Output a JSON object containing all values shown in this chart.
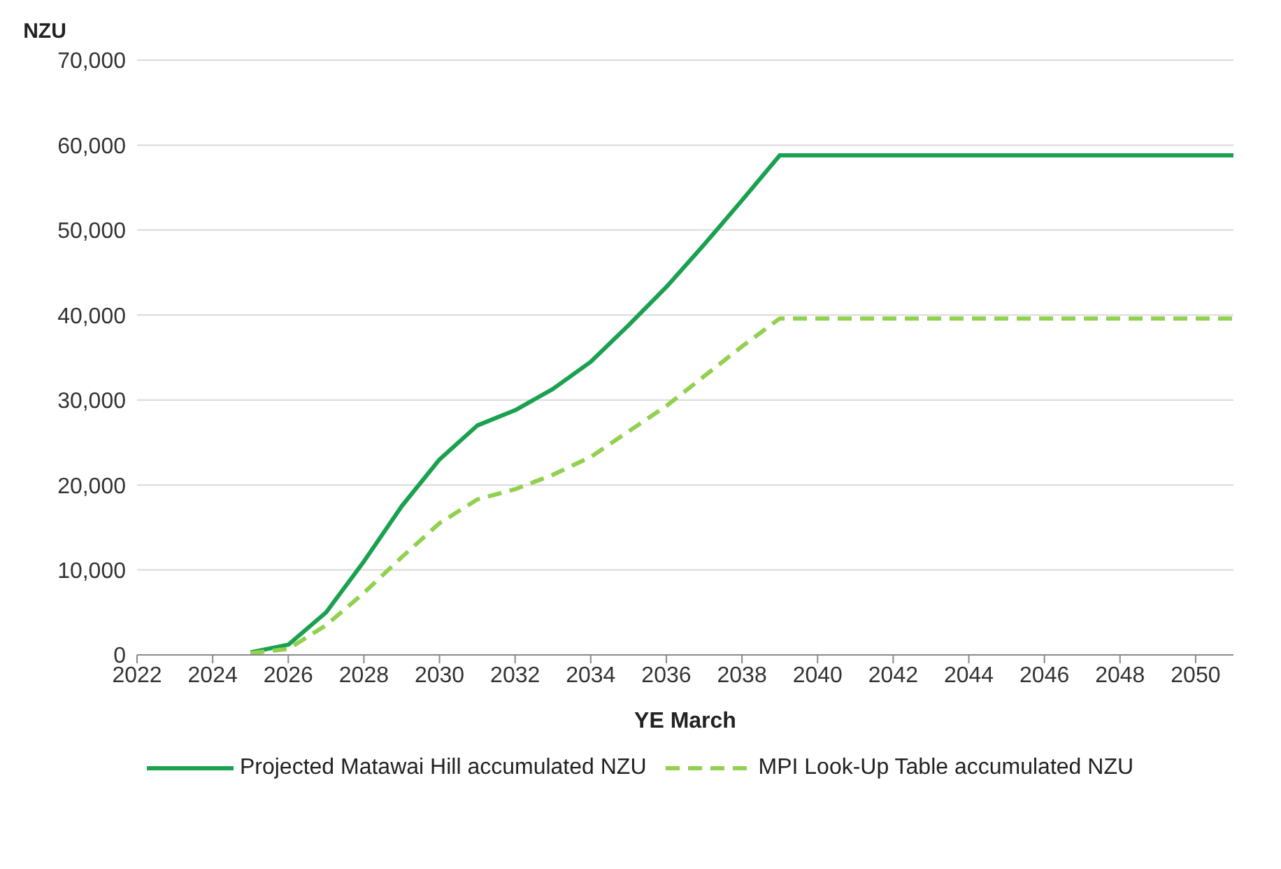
{
  "chart_data": {
    "type": "line",
    "ylabel": "NZU",
    "xlabel": "YE March",
    "xlim": [
      2022,
      2051
    ],
    "xticks": [
      2022,
      2024,
      2026,
      2028,
      2030,
      2032,
      2034,
      2036,
      2038,
      2040,
      2042,
      2044,
      2046,
      2048,
      2050
    ],
    "ylim": [
      0,
      70000
    ],
    "yticks": [
      {
        "value": 0,
        "label": "0"
      },
      {
        "value": 10000,
        "label": "10,000"
      },
      {
        "value": 20000,
        "label": "20,000"
      },
      {
        "value": 30000,
        "label": "30,000"
      },
      {
        "value": 40000,
        "label": "40,000"
      },
      {
        "value": 50000,
        "label": "50,000"
      },
      {
        "value": 60000,
        "label": "60,000"
      },
      {
        "value": 70000,
        "label": "70,000"
      }
    ],
    "grid": "y",
    "legend": "bottom",
    "x": [
      2025,
      2026,
      2027,
      2028,
      2029,
      2030,
      2031,
      2032,
      2033,
      2034,
      2035,
      2036,
      2037,
      2038,
      2039,
      2051
    ],
    "series": [
      {
        "name": "Projected Matawai Hill accumulated NZU",
        "color": "#1aa150",
        "line_style": "solid",
        "values": [
          300,
          1200,
          5000,
          11000,
          17500,
          23000,
          27000,
          28800,
          31300,
          34500,
          38800,
          43300,
          48300,
          53500,
          58800,
          58800
        ]
      },
      {
        "name": "MPI Look-Up Table accumulated NZU",
        "color": "#92d050",
        "line_style": "dashed",
        "values": [
          200,
          700,
          3500,
          7300,
          11500,
          15500,
          18300,
          19500,
          21200,
          23300,
          26300,
          29300,
          32800,
          36300,
          39600,
          39600
        ]
      }
    ]
  }
}
